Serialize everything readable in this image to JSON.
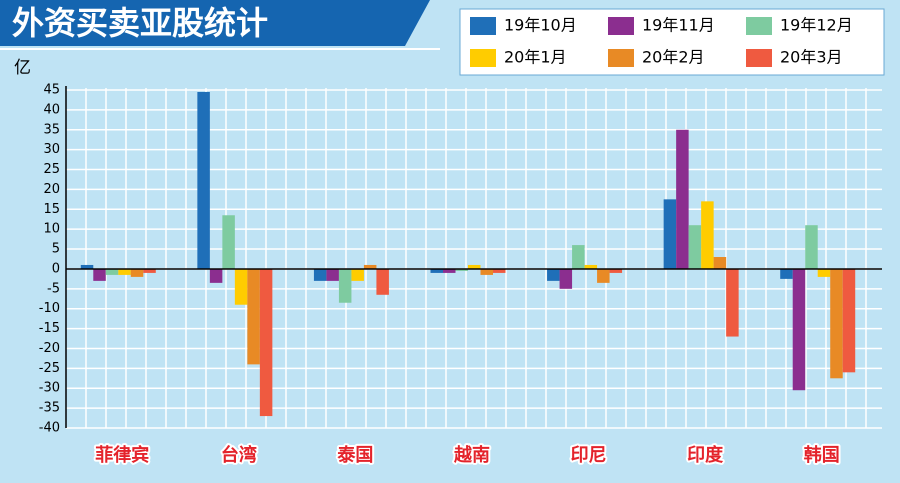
{
  "chart_data": {
    "type": "bar",
    "title": "外资买卖亚股统计",
    "y_label": "亿",
    "categories": [
      "菲律宾",
      "台湾",
      "泰国",
      "越南",
      "印尼",
      "印度",
      "韩国"
    ],
    "series": [
      {
        "name": "19年10月",
        "color": "#1f6fb8",
        "values": [
          1,
          44.5,
          -3,
          -1,
          -3,
          17.5,
          -2.5
        ]
      },
      {
        "name": "19年11月",
        "color": "#8b2e8f",
        "values": [
          -3,
          -3.5,
          -3,
          -1,
          -5,
          35,
          -30.5
        ]
      },
      {
        "name": "19年12月",
        "color": "#7ecba0",
        "values": [
          -1.5,
          13.5,
          -8.5,
          -0.5,
          6,
          11,
          11
        ]
      },
      {
        "name": "20年1月",
        "color": "#ffcc00",
        "values": [
          -1.5,
          -9,
          -3,
          1,
          1,
          17,
          -2
        ]
      },
      {
        "name": "20年2月",
        "color": "#e88a25",
        "values": [
          -2,
          -24,
          1,
          -1.5,
          -3.5,
          3,
          -27.5
        ]
      },
      {
        "name": "20年3月",
        "color": "#ef5a40",
        "values": [
          -1,
          -37,
          -6.5,
          -1,
          -1,
          -17,
          -26
        ]
      }
    ],
    "ylim": [
      -40,
      45
    ],
    "yticks": [
      45,
      40,
      35,
      30,
      25,
      20,
      15,
      10,
      5,
      0,
      -5,
      -10,
      -15,
      -20,
      -25,
      -30,
      -35,
      -40
    ],
    "grid": true,
    "legend": "top-right"
  }
}
